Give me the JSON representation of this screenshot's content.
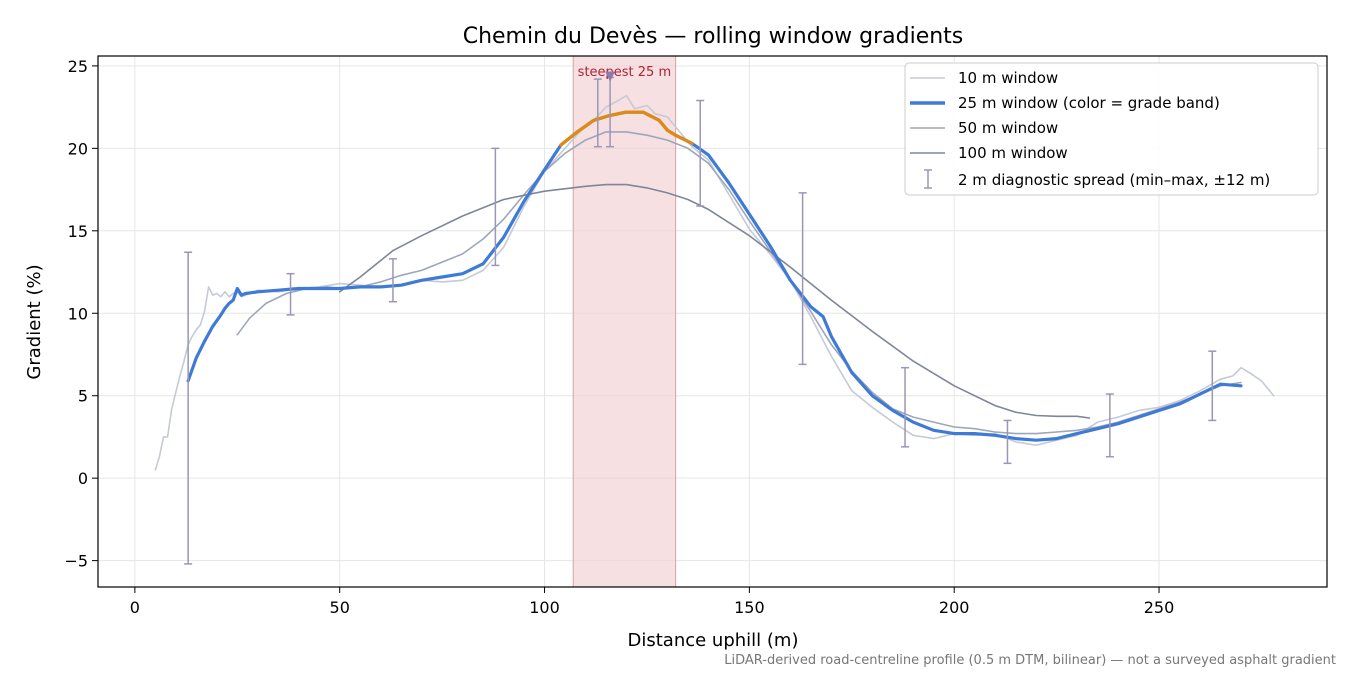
{
  "chart_data": {
    "type": "line",
    "title": "Chemin du Devès — rolling window gradients",
    "xlabel": "Distance uphill (m)",
    "ylabel": "Gradient (%)",
    "xlim": [
      -9,
      291
    ],
    "ylim": [
      -6.6,
      25.6
    ],
    "xticks": [
      0,
      50,
      100,
      150,
      200,
      250
    ],
    "yticks": [
      -5,
      0,
      5,
      10,
      15,
      20,
      25
    ],
    "grid": true,
    "legend_position": "top-right",
    "highlight": {
      "x_range": [
        107,
        132
      ],
      "label": "steepest 25 m",
      "marker_x": 116,
      "marker_y": 24.3
    },
    "note": "LiDAR-derived road-centreline profile (0.5 m DTM, bilinear) — not a surveyed asphalt gradient",
    "colors": {
      "w10": "#c5cad6",
      "w25_blue": "#3f7bd6",
      "w25_orange": "#e08a10",
      "w50": "#9ea6ba",
      "w100": "#7e8698",
      "errorbar": "#9a96b8",
      "band": "#f1cfd3"
    },
    "series": [
      {
        "name": "10 m window",
        "x": [
          5,
          6,
          7,
          8,
          9,
          10,
          11,
          12,
          13,
          14,
          15,
          16,
          17,
          18,
          19,
          20,
          21,
          22,
          23,
          24,
          25,
          26,
          28,
          30,
          35,
          40,
          45,
          50,
          55,
          60,
          65,
          70,
          75,
          80,
          85,
          90,
          95,
          100,
          105,
          110,
          112,
          115,
          118,
          120,
          122,
          125,
          127,
          130,
          133,
          136,
          140,
          145,
          150,
          155,
          160,
          165,
          170,
          175,
          180,
          185,
          190,
          195,
          200,
          205,
          210,
          215,
          220,
          225,
          230,
          235,
          240,
          245,
          250,
          255,
          260,
          265,
          268,
          270,
          272,
          275,
          278
        ],
        "values": [
          0.5,
          1.3,
          2.5,
          2.5,
          4.2,
          5.2,
          6.2,
          7.1,
          8.1,
          8.6,
          9.0,
          9.3,
          10.1,
          11.6,
          11.1,
          11.2,
          11.0,
          11.3,
          11.0,
          11.2,
          11.3,
          11.0,
          11.2,
          11.4,
          11.3,
          11.5,
          11.6,
          11.8,
          11.7,
          11.6,
          11.7,
          12.0,
          11.9,
          12.0,
          12.6,
          14.0,
          16.5,
          18.6,
          20.0,
          21.4,
          21.7,
          22.5,
          22.9,
          23.2,
          22.4,
          22.6,
          22.1,
          21.9,
          21.0,
          20.1,
          19.3,
          17.2,
          15.1,
          13.6,
          12.0,
          9.8,
          7.4,
          5.3,
          4.3,
          3.4,
          2.6,
          2.4,
          2.7,
          2.6,
          2.7,
          2.2,
          2.0,
          2.3,
          2.6,
          3.4,
          3.7,
          4.1,
          4.3,
          4.7,
          5.3,
          6.0,
          6.2,
          6.7,
          6.4,
          5.9,
          5.0
        ]
      },
      {
        "name": "25 m window (color = grade band)",
        "x": [
          13,
          15,
          17,
          19,
          21,
          22,
          23,
          24,
          25,
          26,
          27,
          30,
          35,
          40,
          45,
          50,
          55,
          60,
          65,
          70,
          75,
          80,
          85,
          90,
          95,
          100,
          104,
          108,
          112,
          116,
          120,
          124,
          128,
          130,
          132,
          136,
          140,
          145,
          150,
          155,
          160,
          165,
          168,
          170,
          175,
          180,
          185,
          190,
          195,
          200,
          205,
          210,
          215,
          220,
          225,
          230,
          235,
          240,
          245,
          250,
          255,
          260,
          265,
          270
        ],
        "values": [
          5.9,
          7.3,
          8.3,
          9.2,
          9.9,
          10.3,
          10.6,
          10.8,
          11.5,
          11.1,
          11.2,
          11.3,
          11.4,
          11.5,
          11.5,
          11.5,
          11.6,
          11.6,
          11.7,
          12.0,
          12.2,
          12.4,
          13.0,
          14.6,
          16.8,
          18.7,
          20.2,
          21.0,
          21.7,
          22.0,
          22.2,
          22.2,
          21.7,
          21.1,
          20.8,
          20.3,
          19.6,
          17.9,
          16.0,
          14.1,
          12.0,
          10.4,
          9.8,
          8.6,
          6.4,
          5.0,
          4.1,
          3.4,
          2.9,
          2.7,
          2.7,
          2.6,
          2.4,
          2.3,
          2.4,
          2.7,
          3.0,
          3.3,
          3.7,
          4.1,
          4.5,
          5.1,
          5.7,
          5.6
        ]
      },
      {
        "name": "50 m window",
        "x": [
          25,
          28,
          32,
          37,
          42,
          47,
          50,
          55,
          60,
          65,
          70,
          75,
          80,
          85,
          90,
          95,
          100,
          105,
          110,
          115,
          120,
          125,
          130,
          135,
          140,
          145,
          150,
          155,
          160,
          165,
          170,
          175,
          180,
          185,
          190,
          195,
          200,
          205,
          210,
          215,
          220,
          225,
          230,
          235,
          240,
          245,
          250,
          255,
          260,
          265,
          270
        ],
        "values": [
          8.7,
          9.7,
          10.6,
          11.2,
          11.5,
          11.6,
          11.5,
          11.6,
          11.9,
          12.3,
          12.6,
          13.1,
          13.6,
          14.5,
          15.7,
          17.2,
          18.6,
          19.7,
          20.5,
          21.0,
          21.0,
          20.8,
          20.5,
          20.0,
          19.1,
          17.5,
          15.6,
          13.8,
          12.0,
          10.1,
          8.1,
          6.5,
          5.2,
          4.2,
          3.7,
          3.4,
          3.1,
          3.0,
          2.8,
          2.7,
          2.7,
          2.8,
          2.9,
          3.1,
          3.4,
          3.8,
          4.2,
          4.6,
          5.1,
          5.6,
          5.8
        ]
      },
      {
        "name": "100 m window",
        "x": [
          50,
          55,
          60,
          63,
          70,
          80,
          90,
          100,
          110,
          115,
          120,
          125,
          130,
          135,
          140,
          150,
          160,
          170,
          180,
          190,
          200,
          210,
          215,
          220,
          225,
          230,
          233
        ],
        "values": [
          11.3,
          12.2,
          13.2,
          13.8,
          14.7,
          15.9,
          16.9,
          17.4,
          17.7,
          17.8,
          17.8,
          17.6,
          17.3,
          16.9,
          16.3,
          14.7,
          12.8,
          10.8,
          8.9,
          7.1,
          5.6,
          4.4,
          4.0,
          3.8,
          3.75,
          3.75,
          3.65
        ]
      }
    ],
    "grade_bands": [
      {
        "band": "orange",
        "x_range": [
          104,
          136
        ]
      }
    ],
    "errorbars": {
      "name": "2 m diagnostic spread (min–max, ±12 m)",
      "points": [
        {
          "x": 13,
          "low": -5.2,
          "high": 13.7
        },
        {
          "x": 38,
          "low": 9.9,
          "high": 12.4
        },
        {
          "x": 63,
          "low": 10.7,
          "high": 13.3
        },
        {
          "x": 88,
          "low": 12.9,
          "high": 20.0
        },
        {
          "x": 113,
          "low": 20.1,
          "high": 24.2
        },
        {
          "x": 116,
          "low": 20.1,
          "high": 24.3
        },
        {
          "x": 138,
          "low": 16.5,
          "high": 22.9
        },
        {
          "x": 163,
          "low": 6.9,
          "high": 17.3
        },
        {
          "x": 188,
          "low": 1.9,
          "high": 6.7
        },
        {
          "x": 213,
          "low": 0.9,
          "high": 3.5
        },
        {
          "x": 238,
          "low": 1.3,
          "high": 5.1
        },
        {
          "x": 263,
          "low": 3.5,
          "high": 7.7
        }
      ]
    }
  }
}
